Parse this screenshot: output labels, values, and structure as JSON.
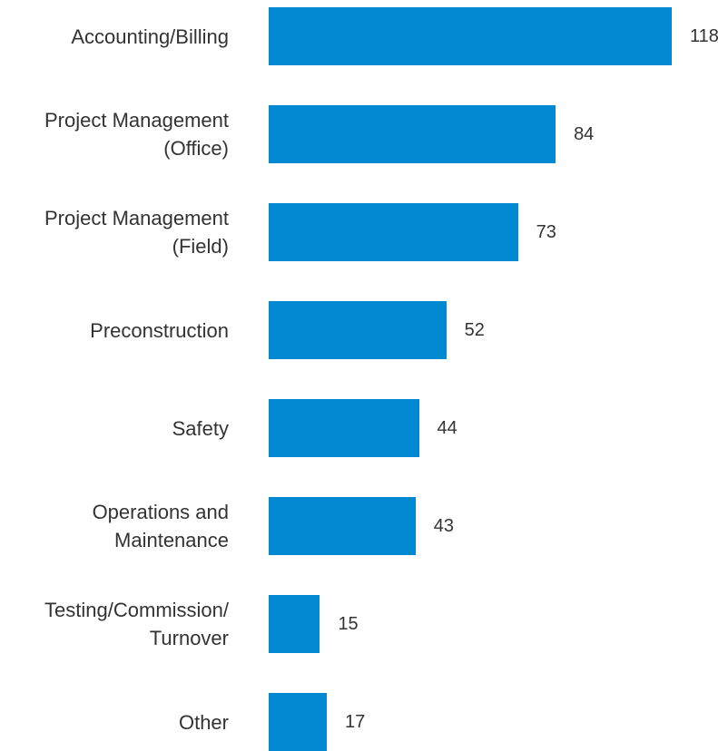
{
  "chart_data": {
    "type": "bar",
    "orientation": "horizontal",
    "categories": [
      "Accounting/Billing",
      "Project Management (Office)",
      "Project Management (Field)",
      "Preconstruction",
      "Safety",
      "Operations and Maintenance",
      "Testing/Commission/ Turnover",
      "Other"
    ],
    "values": [
      118,
      84,
      73,
      52,
      44,
      43,
      15,
      17
    ],
    "color": "#0088d1"
  }
}
